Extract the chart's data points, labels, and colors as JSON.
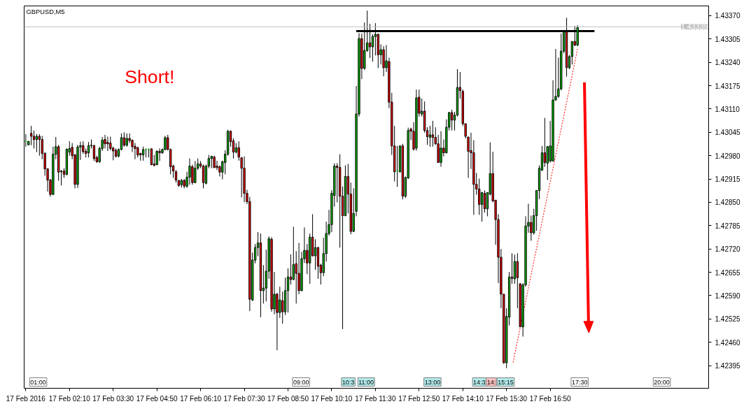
{
  "chart_data": {
    "type": "candlestick",
    "title": "GBPUSD,M5",
    "colors": [
      "#00c000",
      "#00c000",
      "#ff0000",
      "#ff0000",
      "#00c000",
      "#ff0000",
      "#ff0000",
      "#ff0000",
      "#ff0000",
      "#ff0000",
      "#00c000",
      "#00c000",
      "#ff0000",
      "#00c000",
      "#ff0000",
      "#00c000",
      "#00c000",
      "#ff0000",
      "#ff0000",
      "#00c000",
      "#00c000",
      "#ff0000",
      "#ff0000",
      "#00c000",
      "#00c000",
      "#ff0000",
      "#ff0000",
      "#00c000",
      "#00c000",
      "#ff0000",
      "#ff0000",
      "#ff0000",
      "#ff0000",
      "#ff0000",
      "#00c000",
      "#00c000",
      "#ff0000",
      "#00c000",
      "#ff0000",
      "#ff0000",
      "#ff0000",
      "#ff0000",
      "#ff0000",
      "#00c000",
      "#00c000",
      "#00c000",
      "#ff0000",
      "#ff0000",
      "#00c000",
      "#ff0000",
      "#00c000",
      "#00c000",
      "#ff0000",
      "#ff0000",
      "#ff0000",
      "#ff0000",
      "#ff0000",
      "#00c000",
      "#ff0000",
      "#00c000",
      "#00c000",
      "#ff0000",
      "#00c000",
      "#00c000",
      "#ff0000",
      "#ff0000",
      "#00c000",
      "#00c000",
      "#00c000",
      "#ff0000",
      "#ff0000",
      "#ff0000",
      "#00c000",
      "#00c000",
      "#00c000",
      "#ff0000",
      "#ff0000",
      "#00c000",
      "#ff0000",
      "#ff0000",
      "#ff0000",
      "#ff0000",
      "#ff0000",
      "#00c000",
      "#00c000",
      "#00c000",
      "#ff0000",
      "#00c000",
      "#00c000",
      "#00c000",
      "#ff0000",
      "#00c000",
      "#ff0000",
      "#00c000",
      "#ff0000",
      "#00c000",
      "#00c000",
      "#ff0000",
      "#00c000",
      "#ff0000",
      "#ff0000",
      "#00c000",
      "#00c000",
      "#ff0000",
      "#00c000",
      "#ff0000",
      "#00c000",
      "#ff0000",
      "#ff0000",
      "#00c000",
      "#00c000",
      "#00c000",
      "#00c000",
      "#00c000",
      "#ff0000",
      "#ff0000",
      "#ff0000",
      "#00c000",
      "#ff0000",
      "#ff0000",
      "#00c000",
      "#00c000",
      "#00c000",
      "#ff0000",
      "#00c000",
      "#00c000",
      "#ff0000",
      "#00c000",
      "#00c000",
      "#ff0000",
      "#00c000",
      "#ff0000",
      "#00c000",
      "#ff0000",
      "#ff0000",
      "#ff0000",
      "#00c000",
      "#00c000",
      "#ff0000",
      "#00c000",
      "#00c000",
      "#ff0000",
      "#ff0000",
      "#00c000",
      "#ff0000",
      "#00c000",
      "#ff0000",
      "#ff0000",
      "#00c000",
      "#ff0000",
      "#ff0000",
      "#ff0000",
      "#00c000",
      "#ff0000",
      "#00c000",
      "#00c000",
      "#ff0000",
      "#00c000",
      "#00c000",
      "#ff0000",
      "#ff0000",
      "#ff0000",
      "#ff0000",
      "#ff0000",
      "#ff0000",
      "#ff0000",
      "#ff0000",
      "#00c000",
      "#ff0000",
      "#00c000",
      "#00c000",
      "#ff0000",
      "#ff0000",
      "#ff0000",
      "#ff0000",
      "#ff0000",
      "#00c000",
      "#00c000",
      "#ff0000",
      "#00c000",
      "#ff0000",
      "#ff0000",
      "#00c000",
      "#00c000",
      "#00c000",
      "#ff0000",
      "#00c000",
      "#00c000",
      "#00c000",
      "#00c000",
      "#ff0000",
      "#00c000",
      "#00c000",
      "#00c000",
      "#00c000",
      "#00c000",
      "#00c000",
      "#00c000",
      "#ff0000",
      "#00c000",
      "#00c000",
      "#ff0000",
      "#00c000"
    ],
    "x": [
      "2016-02-17T00:50",
      "2016-02-17T00:55",
      "2016-02-17T01:00",
      "2016-02-17T01:05",
      "2016-02-17T01:10",
      "2016-02-17T01:15",
      "2016-02-17T01:20",
      "2016-02-17T01:25",
      "2016-02-17T01:30",
      "2016-02-17T01:35",
      "2016-02-17T01:40",
      "2016-02-17T01:45",
      "2016-02-17T01:50",
      "2016-02-17T01:55",
      "2016-02-17T02:00",
      "2016-02-17T02:05",
      "2016-02-17T02:10",
      "2016-02-17T02:15",
      "2016-02-17T02:20",
      "2016-02-17T02:25",
      "2016-02-17T02:30",
      "2016-02-17T02:35",
      "2016-02-17T02:40",
      "2016-02-17T02:45",
      "2016-02-17T02:50",
      "2016-02-17T02:55",
      "2016-02-17T03:00",
      "2016-02-17T03:05",
      "2016-02-17T03:10",
      "2016-02-17T03:15",
      "2016-02-17T03:20",
      "2016-02-17T03:25",
      "2016-02-17T03:30",
      "2016-02-17T03:35",
      "2016-02-17T03:40",
      "2016-02-17T03:45",
      "2016-02-17T03:50",
      "2016-02-17T03:55",
      "2016-02-17T04:00",
      "2016-02-17T04:05",
      "2016-02-17T04:10",
      "2016-02-17T04:15",
      "2016-02-17T04:20",
      "2016-02-17T04:25",
      "2016-02-17T04:30",
      "2016-02-17T04:35",
      "2016-02-17T04:40",
      "2016-02-17T04:45",
      "2016-02-17T04:50",
      "2016-02-17T04:55",
      "2016-02-17T05:00",
      "2016-02-17T05:05",
      "2016-02-17T05:10",
      "2016-02-17T05:15",
      "2016-02-17T05:20",
      "2016-02-17T05:25",
      "2016-02-17T05:30",
      "2016-02-17T05:35",
      "2016-02-17T05:40",
      "2016-02-17T05:45",
      "2016-02-17T05:50",
      "2016-02-17T05:55",
      "2016-02-17T06:00",
      "2016-02-17T06:05",
      "2016-02-17T06:10",
      "2016-02-17T06:15",
      "2016-02-17T06:20",
      "2016-02-17T06:25",
      "2016-02-17T06:30",
      "2016-02-17T06:35",
      "2016-02-17T06:40",
      "2016-02-17T06:45",
      "2016-02-17T06:50",
      "2016-02-17T06:55",
      "2016-02-17T07:00",
      "2016-02-17T07:05",
      "2016-02-17T07:10",
      "2016-02-17T07:15",
      "2016-02-17T07:20",
      "2016-02-17T07:25",
      "2016-02-17T07:30",
      "2016-02-17T07:35",
      "2016-02-17T07:40",
      "2016-02-17T07:45",
      "2016-02-17T07:50",
      "2016-02-17T07:55",
      "2016-02-17T08:00",
      "2016-02-17T08:05",
      "2016-02-17T08:10",
      "2016-02-17T08:15",
      "2016-02-17T08:20",
      "2016-02-17T08:25",
      "2016-02-17T08:30",
      "2016-02-17T08:35",
      "2016-02-17T08:40",
      "2016-02-17T08:45",
      "2016-02-17T08:50",
      "2016-02-17T08:55",
      "2016-02-17T09:00",
      "2016-02-17T09:05",
      "2016-02-17T09:10",
      "2016-02-17T09:15",
      "2016-02-17T09:20",
      "2016-02-17T09:25",
      "2016-02-17T09:30",
      "2016-02-17T09:35",
      "2016-02-17T09:40",
      "2016-02-17T09:45",
      "2016-02-17T09:50",
      "2016-02-17T09:55",
      "2016-02-17T10:00",
      "2016-02-17T10:05",
      "2016-02-17T10:10",
      "2016-02-17T10:15",
      "2016-02-17T10:20",
      "2016-02-17T10:25",
      "2016-02-17T10:30",
      "2016-02-17T10:35",
      "2016-02-17T10:40",
      "2016-02-17T10:45",
      "2016-02-17T10:50",
      "2016-02-17T10:55",
      "2016-02-17T11:00",
      "2016-02-17T11:05",
      "2016-02-17T11:10",
      "2016-02-17T11:15",
      "2016-02-17T11:20",
      "2016-02-17T11:25",
      "2016-02-17T11:30",
      "2016-02-17T11:35",
      "2016-02-17T11:40",
      "2016-02-17T11:45",
      "2016-02-17T11:50",
      "2016-02-17T11:55",
      "2016-02-17T12:00",
      "2016-02-17T12:05",
      "2016-02-17T12:10",
      "2016-02-17T12:15",
      "2016-02-17T12:20",
      "2016-02-17T12:25",
      "2016-02-17T12:30",
      "2016-02-17T12:35",
      "2016-02-17T12:40",
      "2016-02-17T12:45",
      "2016-02-17T12:50",
      "2016-02-17T12:55",
      "2016-02-17T13:00",
      "2016-02-17T13:05",
      "2016-02-17T13:10",
      "2016-02-17T13:15",
      "2016-02-17T13:20",
      "2016-02-17T13:25",
      "2016-02-17T13:30",
      "2016-02-17T13:35",
      "2016-02-17T13:40",
      "2016-02-17T13:45",
      "2016-02-17T13:50",
      "2016-02-17T13:55",
      "2016-02-17T14:00",
      "2016-02-17T14:05",
      "2016-02-17T14:10",
      "2016-02-17T14:15",
      "2016-02-17T14:20",
      "2016-02-17T14:25",
      "2016-02-17T14:30",
      "2016-02-17T14:35",
      "2016-02-17T14:40",
      "2016-02-17T14:45",
      "2016-02-17T14:50",
      "2016-02-17T14:55",
      "2016-02-17T15:00",
      "2016-02-17T15:05",
      "2016-02-17T15:10",
      "2016-02-17T15:15",
      "2016-02-17T15:20",
      "2016-02-17T15:25",
      "2016-02-17T15:30",
      "2016-02-17T15:35",
      "2016-02-17T15:40",
      "2016-02-17T15:45",
      "2016-02-17T15:50",
      "2016-02-17T15:55",
      "2016-02-17T16:00",
      "2016-02-17T16:05",
      "2016-02-17T16:10",
      "2016-02-17T16:15",
      "2016-02-17T16:20",
      "2016-02-17T16:25",
      "2016-02-17T16:30",
      "2016-02-17T16:35",
      "2016-02-17T16:40",
      "2016-02-17T16:45",
      "2016-02-17T16:50",
      "2016-02-17T16:55",
      "2016-02-17T17:00",
      "2016-02-17T17:05",
      "2016-02-17T17:10",
      "2016-02-17T17:15",
      "2016-02-17T17:20",
      "2016-02-17T17:25",
      "2016-02-17T17:30",
      "2016-02-17T17:35",
      "2016-02-17T17:40"
    ],
    "ohlc": [
      [
        1.4302,
        1.4304,
        1.43005,
        1.4302
      ],
      [
        1.4301,
        1.4302,
        1.4301,
        1.4302
      ],
      [
        1.43042,
        1.43063,
        1.43009,
        1.43034
      ],
      [
        1.43034,
        1.4305,
        1.43,
        1.43025
      ],
      [
        1.43025,
        1.4304,
        1.4299,
        1.43034
      ],
      [
        1.43034,
        1.4304,
        1.4298,
        1.43025
      ],
      [
        1.43025,
        1.43035,
        1.4297,
        1.42986
      ],
      [
        1.42986,
        1.4299,
        1.42924,
        1.42943
      ],
      [
        1.42943,
        1.42945,
        1.4288,
        1.42912
      ],
      [
        1.42912,
        1.42915,
        1.42866,
        1.42872
      ],
      [
        1.42872,
        1.43005,
        1.4287,
        1.42984
      ],
      [
        1.42984,
        1.43032,
        1.4297,
        1.43005
      ],
      [
        1.43005,
        1.4301,
        1.4291,
        1.42934
      ],
      [
        1.42935,
        1.4294,
        1.42897,
        1.42937
      ],
      [
        1.42937,
        1.42945,
        1.42918,
        1.42928
      ],
      [
        1.42928,
        1.43,
        1.42925,
        1.42998
      ],
      [
        1.4299,
        1.4302,
        1.4298,
        1.43
      ],
      [
        1.43003,
        1.43015,
        1.4297,
        1.4298
      ],
      [
        1.42982,
        1.42985,
        1.42889,
        1.429
      ],
      [
        1.429,
        1.4301,
        1.4289,
        1.43004
      ],
      [
        1.43004,
        1.43019,
        1.42968,
        1.43008
      ],
      [
        1.43008,
        1.4302,
        1.42985,
        1.42991
      ],
      [
        1.42992,
        1.43,
        1.42975,
        1.42986
      ],
      [
        1.42988,
        1.43018,
        1.42975,
        1.43008
      ],
      [
        1.43008,
        1.43025,
        1.43,
        1.43009
      ],
      [
        1.43008,
        1.4301,
        1.42965,
        1.42972
      ],
      [
        1.42975,
        1.4298,
        1.4296,
        1.42963
      ],
      [
        1.42963,
        1.43005,
        1.4296,
        1.43
      ],
      [
        1.43,
        1.43032,
        1.42993,
        1.43023
      ],
      [
        1.43025,
        1.43038,
        1.43,
        1.43013
      ],
      [
        1.43017,
        1.43033,
        1.42993,
        1.43013
      ],
      [
        1.43015,
        1.43033,
        1.42995,
        1.43
      ],
      [
        1.43001,
        1.43005,
        1.42967,
        1.42993
      ],
      [
        1.42995,
        1.43,
        1.42975,
        1.42978
      ],
      [
        1.42979,
        1.43,
        1.42975,
        1.42997
      ],
      [
        1.42997,
        1.43042,
        1.42995,
        1.4303
      ],
      [
        1.4303,
        1.43045,
        1.43005,
        1.43009
      ],
      [
        1.43009,
        1.43042,
        1.43005,
        1.43028
      ],
      [
        1.43028,
        1.43042,
        1.43015,
        1.43022
      ],
      [
        1.43023,
        1.43025,
        1.4299,
        1.43005
      ],
      [
        1.43006,
        1.43015,
        1.4297,
        1.43
      ],
      [
        1.43002,
        1.43005,
        1.42975,
        1.42982
      ],
      [
        1.42986,
        1.42988,
        1.42966,
        1.42982
      ],
      [
        1.42982,
        1.43005,
        1.42966,
        1.42997
      ],
      [
        1.42997,
        1.43,
        1.42975,
        1.42997
      ],
      [
        1.42997,
        1.43,
        1.42975,
        1.42997
      ],
      [
        1.42999,
        1.43,
        1.42953,
        1.42955
      ],
      [
        1.42957,
        1.42982,
        1.4295,
        1.42953
      ],
      [
        1.42955,
        1.42995,
        1.42953,
        1.42992
      ],
      [
        1.42992,
        1.43,
        1.42965,
        1.42988
      ],
      [
        1.42988,
        1.43,
        1.42985,
        1.42997
      ],
      [
        1.42997,
        1.43035,
        1.42995,
        1.4303
      ],
      [
        1.4303,
        1.43038,
        1.42995,
        1.42997
      ],
      [
        1.42997,
        1.43,
        1.42928,
        1.42949
      ],
      [
        1.42951,
        1.42955,
        1.42918,
        1.42937
      ],
      [
        1.42935,
        1.4294,
        1.42905,
        1.42912
      ],
      [
        1.42911,
        1.42912,
        1.42893,
        1.42897
      ],
      [
        1.42899,
        1.42915,
        1.42891,
        1.42911
      ],
      [
        1.42911,
        1.42915,
        1.42889,
        1.42895
      ],
      [
        1.42895,
        1.42935,
        1.4289,
        1.4292
      ],
      [
        1.4292,
        1.42972,
        1.42899,
        1.42951
      ],
      [
        1.42949,
        1.42955,
        1.42899,
        1.42905
      ],
      [
        1.42905,
        1.42965,
        1.42903,
        1.42945
      ],
      [
        1.42945,
        1.42972,
        1.4294,
        1.42957
      ],
      [
        1.42957,
        1.42965,
        1.42945,
        1.42951
      ],
      [
        1.42951,
        1.42955,
        1.42889,
        1.42905
      ],
      [
        1.42903,
        1.42955,
        1.429,
        1.42951
      ],
      [
        1.42951,
        1.42982,
        1.42945,
        1.42972
      ],
      [
        1.42972,
        1.4298,
        1.42945,
        1.42978
      ],
      [
        1.42976,
        1.4298,
        1.42945,
        1.42947
      ],
      [
        1.42951,
        1.42966,
        1.4294,
        1.42947
      ],
      [
        1.42949,
        1.42953,
        1.42922,
        1.42934
      ],
      [
        1.42934,
        1.42966,
        1.42914,
        1.42963
      ],
      [
        1.42961,
        1.42995,
        1.42928,
        1.42984
      ],
      [
        1.42984,
        1.43052,
        1.4298,
        1.43048
      ],
      [
        1.43048,
        1.4305,
        1.43005,
        1.43019
      ],
      [
        1.43021,
        1.43028,
        1.42972,
        1.4299
      ],
      [
        1.4299,
        1.43015,
        1.42986,
        1.43002
      ],
      [
        1.43002,
        1.4302,
        1.42966,
        1.42976
      ],
      [
        1.42974,
        1.42976,
        1.42864,
        1.42945
      ],
      [
        1.42945,
        1.42978,
        1.4285,
        1.42875
      ],
      [
        1.42875,
        1.42885,
        1.42845,
        1.42852
      ],
      [
        1.42852,
        1.42865,
        1.42547,
        1.4258
      ],
      [
        1.42578,
        1.4271,
        1.42575,
        1.42689
      ],
      [
        1.42689,
        1.42734,
        1.4268,
        1.42724
      ],
      [
        1.42724,
        1.42767,
        1.427,
        1.42737
      ],
      [
        1.42737,
        1.42763,
        1.4253,
        1.42604
      ],
      [
        1.42604,
        1.42675,
        1.42568,
        1.42611
      ],
      [
        1.42611,
        1.42718,
        1.42574,
        1.42658
      ],
      [
        1.42658,
        1.42755,
        1.42637,
        1.42749
      ],
      [
        1.42747,
        1.42753,
        1.42545,
        1.42553
      ],
      [
        1.42553,
        1.42656,
        1.42538,
        1.42594
      ],
      [
        1.42594,
        1.42598,
        1.42438,
        1.42543
      ],
      [
        1.42543,
        1.42615,
        1.42528,
        1.42578
      ],
      [
        1.42576,
        1.42601,
        1.42512,
        1.42545
      ],
      [
        1.42545,
        1.4264,
        1.42536,
        1.42604
      ],
      [
        1.42604,
        1.42666,
        1.42543,
        1.42642
      ],
      [
        1.42642,
        1.42705,
        1.42621,
        1.42635
      ],
      [
        1.42635,
        1.42782,
        1.42633,
        1.42677
      ],
      [
        1.42679,
        1.42714,
        1.42568,
        1.42652
      ],
      [
        1.42652,
        1.42737,
        1.42594,
        1.42604
      ],
      [
        1.42604,
        1.42712,
        1.42602,
        1.42693
      ],
      [
        1.42693,
        1.4278,
        1.42681,
        1.42716
      ],
      [
        1.42716,
        1.42734,
        1.4265,
        1.42681
      ],
      [
        1.42681,
        1.42763,
        1.42623,
        1.42753
      ],
      [
        1.42753,
        1.42817,
        1.42699,
        1.42701
      ],
      [
        1.42701,
        1.42747,
        1.42662,
        1.42724
      ],
      [
        1.42724,
        1.42726,
        1.42637,
        1.42672
      ],
      [
        1.42675,
        1.42679,
        1.42621,
        1.42654
      ],
      [
        1.42654,
        1.42751,
        1.42644,
        1.42707
      ],
      [
        1.42707,
        1.42796,
        1.42685,
        1.42763
      ],
      [
        1.42763,
        1.42829,
        1.42757,
        1.42788
      ],
      [
        1.42788,
        1.42884,
        1.42767,
        1.42875
      ],
      [
        1.42869,
        1.42959,
        1.42838,
        1.42951
      ],
      [
        1.42951,
        1.42959,
        1.4285,
        1.42947
      ],
      [
        1.42947,
        1.42984,
        1.42724,
        1.42867
      ],
      [
        1.42867,
        1.42894,
        1.42497,
        1.42813
      ],
      [
        1.42813,
        1.42953,
        1.42811,
        1.42922
      ],
      [
        1.42922,
        1.42957,
        1.42819,
        1.42873
      ],
      [
        1.42873,
        1.42905,
        1.42761,
        1.42769
      ],
      [
        1.42769,
        1.42889,
        1.42767,
        1.42819
      ],
      [
        1.42825,
        1.43174,
        1.42811,
        1.43096
      ],
      [
        1.43096,
        1.43321,
        1.43089,
        1.43306
      ],
      [
        1.43306,
        1.4332,
        1.43193,
        1.43223
      ],
      [
        1.43223,
        1.43351,
        1.43219,
        1.43273
      ],
      [
        1.43273,
        1.43384,
        1.43269,
        1.43294
      ],
      [
        1.43294,
        1.43347,
        1.43252,
        1.43283
      ],
      [
        1.43283,
        1.43318,
        1.43242,
        1.43312
      ],
      [
        1.43312,
        1.43349,
        1.43259,
        1.43318
      ],
      [
        1.43318,
        1.4332,
        1.43224,
        1.43261
      ],
      [
        1.43261,
        1.4329,
        1.43234,
        1.43275
      ],
      [
        1.43275,
        1.43285,
        1.43201,
        1.43225
      ],
      [
        1.43225,
        1.43288,
        1.43213,
        1.43244
      ],
      [
        1.43242,
        1.43253,
        1.43112,
        1.43129
      ],
      [
        1.43129,
        1.43155,
        1.42982,
        1.43007
      ],
      [
        1.43007,
        1.43063,
        1.42908,
        1.42935
      ],
      [
        1.42937,
        1.43007,
        1.42893,
        1.42937
      ],
      [
        1.42935,
        1.43009,
        1.42933,
        1.43007
      ],
      [
        1.43007,
        1.43013,
        1.42858,
        1.42867
      ],
      [
        1.42867,
        1.42922,
        1.42862,
        1.42919
      ],
      [
        1.42918,
        1.43058,
        1.42915,
        1.4305
      ],
      [
        1.43054,
        1.43058,
        1.43023,
        1.43048
      ],
      [
        1.43048,
        1.43073,
        1.42994,
        1.42998
      ],
      [
        1.43001,
        1.43164,
        1.42994,
        1.43141
      ],
      [
        1.43143,
        1.43164,
        1.43089,
        1.43098
      ],
      [
        1.43096,
        1.43139,
        1.43089,
        1.43104
      ],
      [
        1.43104,
        1.43131,
        1.43044,
        1.4305
      ],
      [
        1.4305,
        1.43059,
        1.4301,
        1.43033
      ],
      [
        1.43031,
        1.43063,
        1.43005,
        1.43038
      ],
      [
        1.43038,
        1.43077,
        1.43005,
        1.43031
      ],
      [
        1.43031,
        1.43059,
        1.4301,
        1.43013
      ],
      [
        1.43013,
        1.43038,
        1.42961,
        1.42961
      ],
      [
        1.42961,
        1.43048,
        1.42949,
        1.43001
      ],
      [
        1.43001,
        1.43025,
        1.42978,
        1.42988
      ],
      [
        1.42988,
        1.43081,
        1.42986,
        1.43059
      ],
      [
        1.43059,
        1.43102,
        1.4305,
        1.431
      ],
      [
        1.431,
        1.43108,
        1.4305,
        1.43079
      ],
      [
        1.43079,
        1.43102,
        1.4305,
        1.43093
      ],
      [
        1.43093,
        1.43221,
        1.43089,
        1.4317
      ],
      [
        1.4317,
        1.43213,
        1.43139,
        1.43161
      ],
      [
        1.43159,
        1.43164,
        1.43063,
        1.43069
      ],
      [
        1.43069,
        1.43069,
        1.43028,
        1.43034
      ],
      [
        1.43032,
        1.43032,
        1.42918,
        1.42992
      ],
      [
        1.42994,
        1.43044,
        1.42943,
        1.42988
      ],
      [
        1.42988,
        1.43023,
        1.42815,
        1.429
      ],
      [
        1.429,
        1.42932,
        1.42871,
        1.42887
      ],
      [
        1.42887,
        1.42916,
        1.42815,
        1.42844
      ],
      [
        1.42844,
        1.42879,
        1.42796,
        1.42877
      ],
      [
        1.42875,
        1.42883,
        1.42821,
        1.42832
      ],
      [
        1.42832,
        1.42877,
        1.42811,
        1.42877
      ],
      [
        1.42873,
        1.43017,
        1.42869,
        1.4293
      ],
      [
        1.4293,
        1.42991,
        1.4285,
        1.42854
      ],
      [
        1.42856,
        1.42856,
        1.42732,
        1.42802
      ],
      [
        1.42802,
        1.42817,
        1.42625,
        1.42697
      ],
      [
        1.42697,
        1.4272,
        1.42555,
        1.42594
      ],
      [
        1.42594,
        1.42594,
        1.424,
        1.42403
      ],
      [
        1.42403,
        1.42555,
        1.42388,
        1.42532
      ],
      [
        1.4253,
        1.42656,
        1.42507,
        1.42642
      ],
      [
        1.42642,
        1.42708,
        1.42623,
        1.42638
      ],
      [
        1.42637,
        1.42704,
        1.42623,
        1.42685
      ],
      [
        1.42685,
        1.42708,
        1.42555,
        1.4264
      ],
      [
        1.42623,
        1.42625,
        1.42503,
        1.42503
      ],
      [
        1.42503,
        1.42625,
        1.42476,
        1.4262
      ],
      [
        1.4262,
        1.42811,
        1.42615,
        1.42784
      ],
      [
        1.42784,
        1.42846,
        1.42765,
        1.42794
      ],
      [
        1.42794,
        1.42813,
        1.42743,
        1.42765
      ],
      [
        1.42765,
        1.42832,
        1.4276,
        1.42813
      ],
      [
        1.42813,
        1.42883,
        1.42771,
        1.42883
      ],
      [
        1.42883,
        1.42953,
        1.42859,
        1.42945
      ],
      [
        1.42939,
        1.43007,
        1.42939,
        1.42988
      ],
      [
        1.42988,
        1.43085,
        1.42949,
        1.42961
      ],
      [
        1.42959,
        1.43007,
        1.42912,
        1.43005
      ],
      [
        1.42965,
        1.43077,
        1.42961,
        1.43007
      ],
      [
        1.42965,
        1.4319,
        1.42965,
        1.43135
      ],
      [
        1.43135,
        1.43277,
        1.43133,
        1.43145
      ],
      [
        1.43145,
        1.43253,
        1.43141,
        1.43166
      ],
      [
        1.43166,
        1.4332,
        1.43162,
        1.43271
      ],
      [
        1.43271,
        1.43325,
        1.43265,
        1.43325
      ],
      [
        1.43325,
        1.43364,
        1.432,
        1.43225
      ],
      [
        1.43225,
        1.4326,
        1.43221,
        1.43256
      ],
      [
        1.43256,
        1.43298,
        1.43234,
        1.43298
      ],
      [
        1.43298,
        1.43341,
        1.43285,
        1.43288
      ],
      [
        1.43288,
        1.43343,
        1.43285,
        1.43337
      ]
    ],
    "series": [
      {
        "type": "line",
        "color": "#000000",
        "line_style": "solid",
        "x": [
          "2016-02-17T10:55",
          "2016-02-17T18:11"
        ],
        "values": [
          1.43327,
          1.43327
        ]
      },
      {
        "type": "line",
        "color": "#ff0000",
        "line_style": "dotted",
        "x": [
          "2016-02-17T15:42",
          "2016-02-17T17:40"
        ],
        "values": [
          1.42404,
          1.43277
        ]
      }
    ],
    "ref_lines": [
      {
        "axis": "y",
        "value": 1.43339,
        "label": "1.43339",
        "color": "#c0c0c0"
      }
    ],
    "annotations": [
      "Short!",
      "01:00",
      "09:00",
      "10:3",
      "11:00",
      "13:00",
      "14:3",
      "14:",
      "15:15",
      "17:30",
      "20:00"
    ],
    "xlim": [
      "2016-02-17T00:47",
      "2016-02-17T21:40"
    ],
    "xticks": [
      {
        "value": "2016-02-17T00:50",
        "label": "17 Feb 2016"
      },
      {
        "value": "2016-02-17T02:10",
        "label": "17 Feb 02:10"
      },
      {
        "value": "2016-02-17T03:30",
        "label": "17 Feb 03:30"
      },
      {
        "value": "2016-02-17T04:50",
        "label": "17 Feb 04:50"
      },
      {
        "value": "2016-02-17T06:10",
        "label": "17 Feb 06:10"
      },
      {
        "value": "2016-02-17T07:30",
        "label": "17 Feb 07:30"
      },
      {
        "value": "2016-02-17T08:50",
        "label": "17 Feb 08:50"
      },
      {
        "value": "2016-02-17T10:10",
        "label": "17 Feb 10:10"
      },
      {
        "value": "2016-02-17T11:30",
        "label": "17 Feb 11:30"
      },
      {
        "value": "2016-02-17T12:50",
        "label": "17 Feb 12:50"
      },
      {
        "value": "2016-02-17T14:10",
        "label": "17 Feb 14:10"
      },
      {
        "value": "2016-02-17T15:30",
        "label": "17 Feb 15:30"
      },
      {
        "value": "2016-02-17T16:50",
        "label": "17 Feb 16:50"
      }
    ],
    "ylim": [
      1.42332,
      1.43397
    ],
    "yticks": [
      1.42395,
      {
        "value": 1.4246,
        "label": "1.42460"
      },
      1.42525,
      {
        "value": 1.4259,
        "label": "1.42590"
      },
      1.42655,
      {
        "value": 1.4272,
        "label": "1.42720"
      },
      1.42785,
      {
        "value": 1.4285,
        "label": "1.42850"
      },
      1.42915,
      {
        "value": 1.4298,
        "label": "1.42980"
      },
      1.43045,
      {
        "value": 1.4311,
        "label": "1.43110"
      },
      1.43175,
      {
        "value": 1.4324,
        "label": "1.43240"
      },
      1.43305,
      {
        "value": 1.4337,
        "label": "1.43370"
      }
    ]
  }
}
